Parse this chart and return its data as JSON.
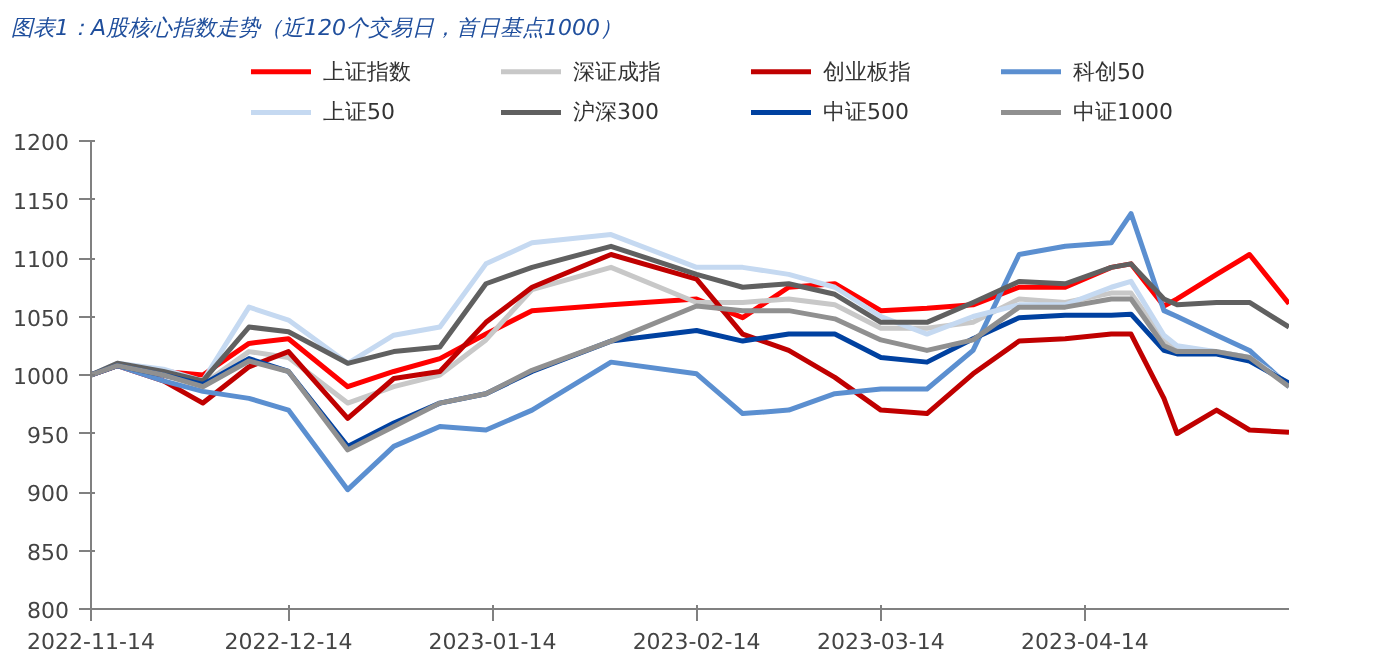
{
  "chart_data": {
    "type": "line",
    "title": "图表1：A股核心指数走势（近120个交易日，首日基点1000）",
    "x": [
      "2022-11-14",
      "2022-11-18",
      "2022-11-25",
      "2022-12-01",
      "2022-12-08",
      "2022-12-14",
      "2022-12-23",
      "2022-12-30",
      "2023-01-06",
      "2023-01-13",
      "2023-01-20",
      "2023-02-01",
      "2023-02-14",
      "2023-02-21",
      "2023-02-28",
      "2023-03-07",
      "2023-03-14",
      "2023-03-21",
      "2023-03-28",
      "2023-04-04",
      "2023-04-11",
      "2023-04-18",
      "2023-04-21",
      "2023-04-26",
      "2023-04-28",
      "2023-05-04",
      "2023-05-09",
      "2023-05-15"
    ],
    "series": [
      {
        "name": "上证指数",
        "color": "#ff0000",
        "values": [
          1000,
          1008,
          1003,
          1000,
          1027,
          1031,
          990,
          1003,
          1014,
          1035,
          1055,
          1060,
          1065,
          1049,
          1075,
          1078,
          1055,
          1057,
          1060,
          1075,
          1075,
          1092,
          1095,
          1059,
          1065,
          1086,
          1103,
          1061
        ]
      },
      {
        "name": "深证成指",
        "color": "#c8c8c8",
        "values": [
          1000,
          1008,
          1000,
          992,
          1020,
          1015,
          976,
          990,
          1000,
          1030,
          1073,
          1092,
          1062,
          1062,
          1065,
          1060,
          1040,
          1040,
          1045,
          1065,
          1062,
          1070,
          1070,
          1030,
          1022,
          1020,
          1015,
          992
        ]
      },
      {
        "name": "创业板指",
        "color": "#c00000",
        "values": [
          1000,
          1008,
          995,
          976,
          1007,
          1020,
          963,
          997,
          1003,
          1045,
          1075,
          1103,
          1082,
          1035,
          1021,
          998,
          970,
          967,
          1001,
          1029,
          1031,
          1035,
          1035,
          980,
          950,
          970,
          953,
          951
        ]
      },
      {
        "name": "科创50",
        "color": "#5b8fd0",
        "values": [
          1000,
          1008,
          995,
          986,
          980,
          970,
          902,
          939,
          956,
          953,
          970,
          1011,
          1001,
          967,
          970,
          984,
          988,
          988,
          1021,
          1103,
          1110,
          1113,
          1138,
          1055,
          1050,
          1034,
          1021,
          990
        ]
      },
      {
        "name": "上证50",
        "color": "#c5d9f1",
        "values": [
          1000,
          1010,
          1005,
          995,
          1058,
          1047,
          1010,
          1034,
          1041,
          1095,
          1113,
          1120,
          1092,
          1092,
          1086,
          1075,
          1050,
          1035,
          1050,
          1060,
          1060,
          1075,
          1080,
          1034,
          1025,
          1020,
          1015,
          992
        ]
      },
      {
        "name": "沪深300",
        "color": "#606060",
        "values": [
          1000,
          1010,
          1003,
          995,
          1041,
          1037,
          1010,
          1020,
          1024,
          1078,
          1092,
          1110,
          1086,
          1075,
          1078,
          1069,
          1045,
          1045,
          1062,
          1080,
          1078,
          1092,
          1095,
          1065,
          1060,
          1062,
          1062,
          1041
        ]
      },
      {
        "name": "中证500",
        "color": "#0041a0",
        "values": [
          1000,
          1008,
          1000,
          992,
          1014,
          1003,
          939,
          959,
          976,
          984,
          1003,
          1029,
          1038,
          1029,
          1035,
          1035,
          1015,
          1011,
          1031,
          1049,
          1051,
          1051,
          1052,
          1021,
          1018,
          1018,
          1012,
          993
        ]
      },
      {
        "name": "中证1000",
        "color": "#909090",
        "values": [
          1000,
          1008,
          1000,
          990,
          1012,
          1003,
          936,
          956,
          976,
          984,
          1004,
          1029,
          1059,
          1055,
          1055,
          1048,
          1030,
          1021,
          1030,
          1058,
          1058,
          1065,
          1065,
          1025,
          1020,
          1020,
          1015,
          990
        ]
      }
    ],
    "xlim": [
      "2022-11-14",
      "2023-05-15"
    ],
    "xticks": [
      {
        "value": "2022-11-14",
        "label": "2022-11-14"
      },
      {
        "value": "2022-12-14",
        "label": "2022-12-14"
      },
      {
        "value": "2023-01-14",
        "label": "2023-01-14"
      },
      {
        "value": "2023-02-14",
        "label": "2023-02-14"
      },
      {
        "value": "2023-03-14",
        "label": "2023-03-14"
      },
      {
        "value": "2023-04-14",
        "label": "2023-04-14"
      }
    ],
    "ylim": [
      800,
      1200
    ],
    "yticks": [
      800,
      850,
      900,
      950,
      1000,
      1050,
      1100,
      1150,
      1200
    ],
    "grid": false,
    "legend": "top",
    "line_style": "solid",
    "marker": "none"
  }
}
